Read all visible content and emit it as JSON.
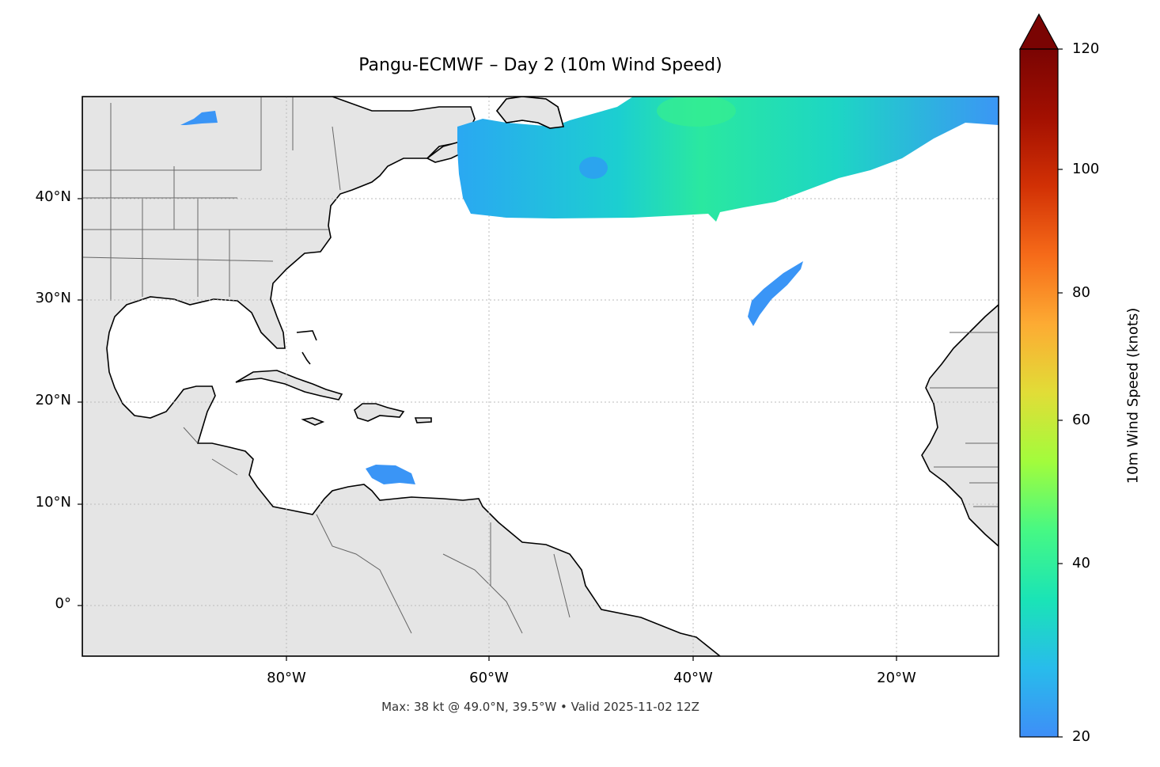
{
  "title": "Pangu-ECMWF – Day 2 (10m Wind Speed)",
  "footer": "Max: 38 kt @ 49.0°N, 39.5°W • Valid 2025-11-02 12Z",
  "map": {
    "lon_range": [
      -100,
      -10
    ],
    "lat_range": [
      -5,
      50
    ],
    "lat_ticks": [
      "40°N",
      "30°N",
      "20°N",
      "10°N",
      "0°"
    ],
    "lon_ticks": [
      "80°W",
      "60°W",
      "40°W",
      "20°W"
    ],
    "gridlines": true,
    "land_color": "#e5e5e5",
    "coastline_color": "#000000",
    "border_color": "#666666"
  },
  "colorbar": {
    "label": "10m Wind Speed (knots)",
    "range": [
      20,
      120
    ],
    "extend": "max",
    "ticks": [
      "120",
      "100",
      "80",
      "60",
      "40",
      "20"
    ],
    "colormap": "turbo"
  },
  "wind_features": [
    {
      "region": "North Atlantic band",
      "speed_kt_max": 38
    },
    {
      "region": "Central Atlantic filament",
      "speed_kt_max": 24
    },
    {
      "region": "Caribbean near Venezuela",
      "speed_kt_max": 22
    },
    {
      "region": "Lake Superior",
      "speed_kt_max": 21
    }
  ]
}
